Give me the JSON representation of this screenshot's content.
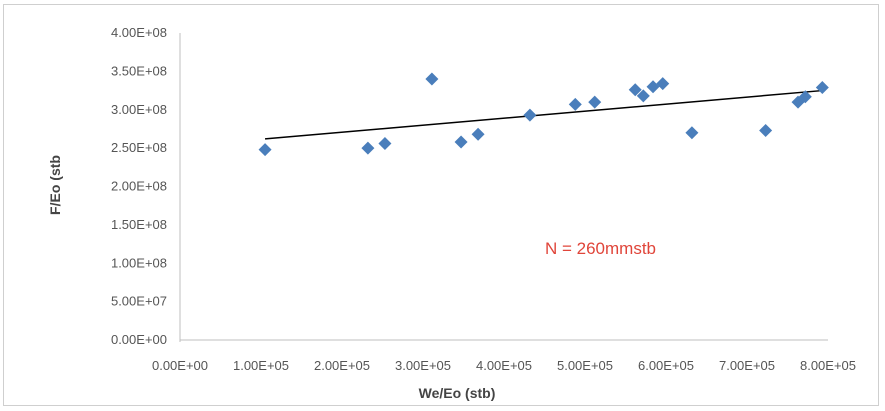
{
  "chart_data": {
    "type": "scatter",
    "xlabel": "We/Eo (stb)",
    "ylabel": "F/Eo (stb",
    "xlim": [
      0,
      800000
    ],
    "ylim": [
      0,
      400000000
    ],
    "x_ticks": [
      0,
      100000,
      200000,
      300000,
      400000,
      500000,
      600000,
      700000,
      800000
    ],
    "x_tick_labels": [
      "0.00E+00",
      "1.00E+05",
      "2.00E+05",
      "3.00E+05",
      "4.00E+05",
      "5.00E+05",
      "6.00E+05",
      "7.00E+05",
      "8.00E+05"
    ],
    "y_ticks": [
      0,
      50000000,
      100000000,
      150000000,
      200000000,
      250000000,
      300000000,
      350000000,
      400000000
    ],
    "y_tick_labels": [
      "0.00E+00",
      "5.00E+07",
      "1.00E+08",
      "1.50E+08",
      "2.00E+08",
      "2.50E+08",
      "3.00E+08",
      "3.50E+08",
      "4.00E+08"
    ],
    "grid": false,
    "legend": false,
    "marker_color": "#4a7ebb",
    "trendline_color": "#000000",
    "points": [
      {
        "x": 105000,
        "y": 248000000
      },
      {
        "x": 232000,
        "y": 250000000
      },
      {
        "x": 253000,
        "y": 256000000
      },
      {
        "x": 311000,
        "y": 340000000
      },
      {
        "x": 347000,
        "y": 258000000
      },
      {
        "x": 368000,
        "y": 268000000
      },
      {
        "x": 432000,
        "y": 293000000
      },
      {
        "x": 488000,
        "y": 307000000
      },
      {
        "x": 512000,
        "y": 310000000
      },
      {
        "x": 562000,
        "y": 326000000
      },
      {
        "x": 572000,
        "y": 318000000
      },
      {
        "x": 584000,
        "y": 330000000
      },
      {
        "x": 596000,
        "y": 334000000
      },
      {
        "x": 632000,
        "y": 270000000
      },
      {
        "x": 723000,
        "y": 273000000
      },
      {
        "x": 763000,
        "y": 310000000
      },
      {
        "x": 772000,
        "y": 317000000
      },
      {
        "x": 793000,
        "y": 329000000
      }
    ],
    "trendline": {
      "x": [
        105000,
        793000
      ],
      "y": [
        262000000,
        325000000
      ]
    },
    "annotations": [
      {
        "text": "N = 260mmstb"
      }
    ]
  }
}
